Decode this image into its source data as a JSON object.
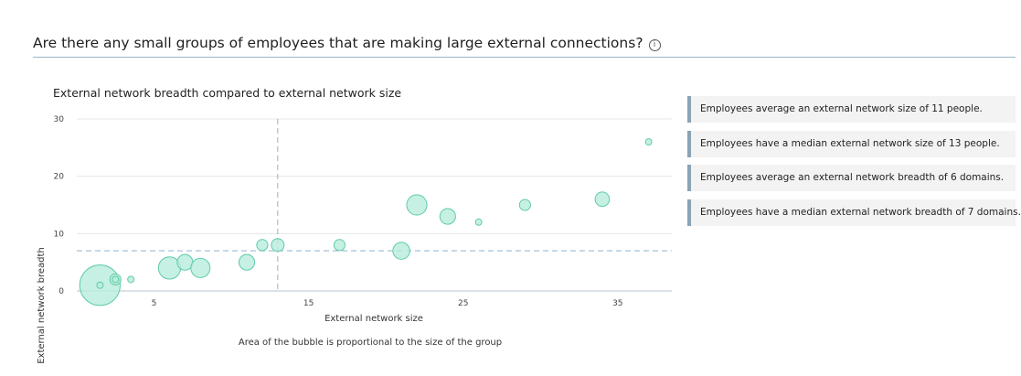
{
  "header": {
    "question": "Are there any small groups of employees that are making large external connections?",
    "info_icon": "info-icon"
  },
  "caption": "Area of the bubble is proportional to the size of the group",
  "insights": [
    "Employees average an external network size of 11 people.",
    "Employees have a median external network size of 13 people.",
    "Employees average an external network breadth of 6 domains.",
    "Employees have a median external network breadth of 7 domains."
  ],
  "colors": {
    "bubble_fill": "#b8ecdc",
    "bubble_stroke": "#5fcba8",
    "reference_line": "#8fb4cc",
    "grid": "#e6e6e6",
    "insight_accent": "#8aa3b5"
  },
  "chart_data": {
    "type": "scatter",
    "title": "External network breadth compared to external network size",
    "xlabel": "External network size",
    "ylabel": "External network breadth",
    "xlim": [
      0,
      38.5
    ],
    "ylim": [
      0,
      30
    ],
    "xticks": [
      5,
      15,
      25,
      35
    ],
    "yticks": [
      0,
      10,
      20,
      30
    ],
    "grid": "horizontal",
    "reference_lines": {
      "x": 13,
      "y": 7
    },
    "points": [
      {
        "x": 1.5,
        "y": 1,
        "size": 40
      },
      {
        "x": 1.5,
        "y": 1,
        "size": 1
      },
      {
        "x": 2.5,
        "y": 2,
        "size": 3
      },
      {
        "x": 2.5,
        "y": 2,
        "size": 1
      },
      {
        "x": 3.5,
        "y": 2,
        "size": 1
      },
      {
        "x": 6,
        "y": 4,
        "size": 12
      },
      {
        "x": 7,
        "y": 5,
        "size": 6
      },
      {
        "x": 8,
        "y": 4,
        "size": 9
      },
      {
        "x": 11,
        "y": 5,
        "size": 6
      },
      {
        "x": 12,
        "y": 8,
        "size": 3
      },
      {
        "x": 13,
        "y": 8,
        "size": 4
      },
      {
        "x": 17,
        "y": 8,
        "size": 3
      },
      {
        "x": 21,
        "y": 7,
        "size": 7
      },
      {
        "x": 22,
        "y": 15,
        "size": 10
      },
      {
        "x": 24,
        "y": 13,
        "size": 6
      },
      {
        "x": 26,
        "y": 12,
        "size": 1
      },
      {
        "x": 29,
        "y": 15,
        "size": 3
      },
      {
        "x": 34,
        "y": 16,
        "size": 5
      },
      {
        "x": 37,
        "y": 26,
        "size": 1
      }
    ]
  }
}
